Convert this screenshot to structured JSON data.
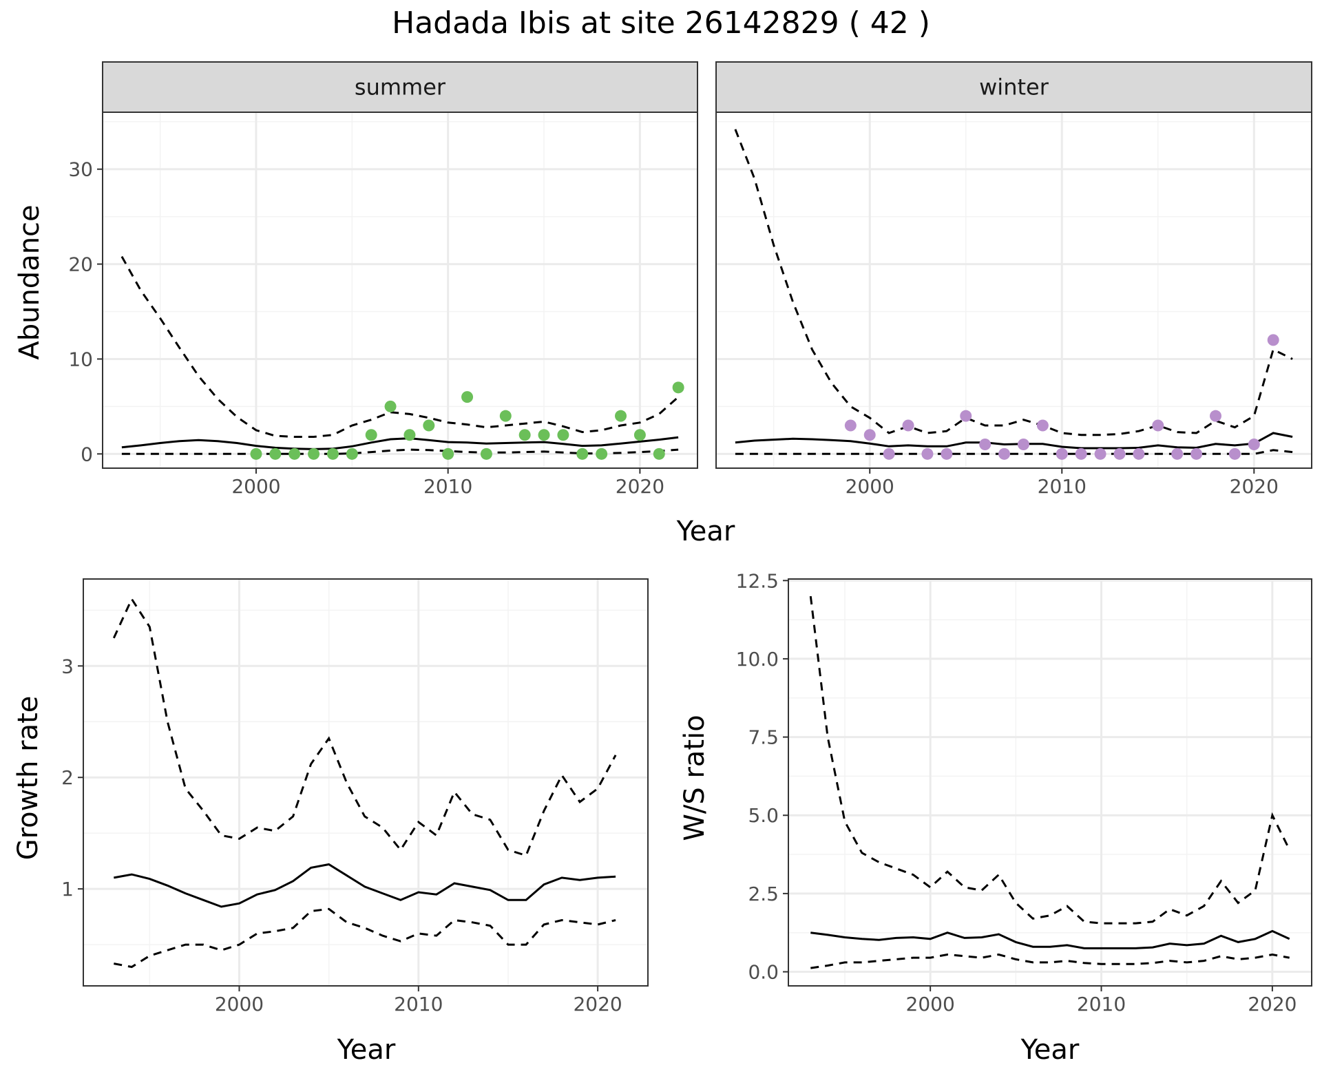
{
  "figure": {
    "title": "Hadada Ibis at site 26142829 ( 42 )"
  },
  "colors": {
    "summer_points": "#6bbf59",
    "winter_points": "#b88fcc",
    "line": "#000000",
    "grid_major": "#ebebeb",
    "strip_fill": "#d9d9d9"
  },
  "chart_data": [
    {
      "id": "abundance",
      "type": "line+scatter",
      "xlabel": "Year",
      "ylabel": "Abundance",
      "xlim": [
        1992,
        2023
      ],
      "ylim": [
        -1.5,
        36
      ],
      "x_ticks": [
        2000,
        2010,
        2020
      ],
      "y_ticks": [
        0,
        10,
        20,
        30
      ],
      "panels": [
        {
          "label": "summer",
          "x": [
            1993,
            1994,
            1995,
            1996,
            1997,
            1998,
            1999,
            2000,
            2001,
            2002,
            2003,
            2004,
            2005,
            2006,
            2007,
            2008,
            2009,
            2010,
            2011,
            2012,
            2013,
            2014,
            2015,
            2016,
            2017,
            2018,
            2019,
            2020,
            2021,
            2022
          ],
          "mean": [
            0.7,
            0.9,
            1.15,
            1.35,
            1.45,
            1.35,
            1.15,
            0.85,
            0.65,
            0.55,
            0.5,
            0.55,
            0.8,
            1.2,
            1.55,
            1.65,
            1.45,
            1.25,
            1.2,
            1.1,
            1.15,
            1.2,
            1.25,
            1.05,
            0.85,
            0.9,
            1.1,
            1.3,
            1.5,
            1.75
          ],
          "upper": [
            20.8,
            17.2,
            14.3,
            11.2,
            8.2,
            5.8,
            3.9,
            2.5,
            1.9,
            1.8,
            1.8,
            2.0,
            3.0,
            3.6,
            4.4,
            4.2,
            3.8,
            3.3,
            3.1,
            2.8,
            3.0,
            3.2,
            3.4,
            2.9,
            2.3,
            2.5,
            3.0,
            3.3,
            4.2,
            6.0
          ],
          "lower": [
            0.0,
            0.0,
            0.0,
            0.0,
            0.0,
            0.0,
            0.0,
            0.0,
            0.0,
            0.0,
            0.0,
            0.0,
            0.05,
            0.2,
            0.35,
            0.45,
            0.4,
            0.3,
            0.2,
            0.15,
            0.15,
            0.2,
            0.25,
            0.15,
            0.05,
            0.05,
            0.1,
            0.2,
            0.3,
            0.45
          ],
          "observed_x": [
            2000,
            2001,
            2002,
            2003,
            2004,
            2005,
            2006,
            2007,
            2008,
            2009,
            2010,
            2011,
            2012,
            2013,
            2014,
            2015,
            2016,
            2017,
            2018,
            2019,
            2020,
            2021,
            2022
          ],
          "observed_y": [
            0,
            0,
            0,
            0,
            0,
            0,
            2,
            5,
            2,
            3,
            0,
            6,
            0,
            4,
            2,
            2,
            2,
            0,
            0,
            4,
            2,
            0,
            7
          ]
        },
        {
          "label": "winter",
          "x": [
            1993,
            1994,
            1995,
            1996,
            1997,
            1998,
            1999,
            2000,
            2001,
            2002,
            2003,
            2004,
            2005,
            2006,
            2007,
            2008,
            2009,
            2010,
            2011,
            2012,
            2013,
            2014,
            2015,
            2016,
            2017,
            2018,
            2019,
            2020,
            2021,
            2022
          ],
          "mean": [
            1.2,
            1.4,
            1.5,
            1.6,
            1.55,
            1.45,
            1.35,
            1.1,
            0.8,
            0.9,
            0.8,
            0.8,
            1.2,
            1.2,
            1.0,
            1.05,
            1.05,
            0.75,
            0.6,
            0.6,
            0.6,
            0.65,
            0.9,
            0.7,
            0.65,
            1.05,
            0.9,
            1.1,
            2.2,
            1.8
          ],
          "upper": [
            34.2,
            29.0,
            22.0,
            16.0,
            11.0,
            7.5,
            5.0,
            3.8,
            2.2,
            2.9,
            2.2,
            2.4,
            3.8,
            3.0,
            3.0,
            3.6,
            3.0,
            2.2,
            2.0,
            2.0,
            2.1,
            2.4,
            3.0,
            2.3,
            2.2,
            3.5,
            2.8,
            4.0,
            11.0,
            10.0
          ],
          "lower": [
            0.0,
            0.0,
            0.0,
            0.0,
            0.0,
            0.0,
            0.0,
            0.0,
            0.0,
            0.0,
            0.0,
            0.0,
            0.0,
            0.0,
            0.0,
            0.0,
            0.0,
            0.0,
            0.0,
            0.0,
            0.0,
            0.0,
            0.0,
            0.0,
            0.0,
            0.0,
            0.0,
            0.0,
            0.4,
            0.2
          ],
          "observed_x": [
            1999,
            2000,
            2001,
            2002,
            2003,
            2004,
            2005,
            2006,
            2007,
            2008,
            2009,
            2010,
            2011,
            2012,
            2013,
            2014,
            2015,
            2016,
            2017,
            2018,
            2019,
            2020,
            2021
          ],
          "observed_y": [
            3,
            2,
            0,
            3,
            0,
            0,
            4,
            1,
            0,
            1,
            3,
            0,
            0,
            0,
            0,
            0,
            3,
            0,
            0,
            4,
            0,
            1,
            12
          ]
        }
      ]
    },
    {
      "id": "growth",
      "type": "line",
      "xlabel": "Year",
      "ylabel": "Growth rate",
      "xlim": [
        1991.3,
        2022.8
      ],
      "ylim": [
        0.13,
        3.78
      ],
      "x_ticks": [
        2000,
        2010,
        2020
      ],
      "y_ticks": [
        1,
        2,
        3
      ],
      "x": [
        1993,
        1994,
        1995,
        1996,
        1997,
        1998,
        1999,
        2000,
        2001,
        2002,
        2003,
        2004,
        2005,
        2006,
        2007,
        2008,
        2009,
        2010,
        2011,
        2012,
        2013,
        2014,
        2015,
        2016,
        2017,
        2018,
        2019,
        2020,
        2021
      ],
      "mean": [
        1.1,
        1.13,
        1.09,
        1.03,
        0.96,
        0.9,
        0.84,
        0.87,
        0.95,
        0.99,
        1.07,
        1.19,
        1.22,
        1.12,
        1.02,
        0.96,
        0.9,
        0.97,
        0.95,
        1.05,
        1.02,
        0.99,
        0.9,
        0.9,
        1.04,
        1.1,
        1.08,
        1.1,
        1.11
      ],
      "upper": [
        3.25,
        3.6,
        3.35,
        2.5,
        1.9,
        1.7,
        1.48,
        1.45,
        1.55,
        1.52,
        1.65,
        2.12,
        2.35,
        1.95,
        1.65,
        1.55,
        1.35,
        1.6,
        1.48,
        1.87,
        1.67,
        1.62,
        1.35,
        1.3,
        1.7,
        2.02,
        1.78,
        1.9,
        2.2
      ],
      "lower": [
        0.33,
        0.3,
        0.4,
        0.45,
        0.5,
        0.5,
        0.45,
        0.5,
        0.6,
        0.62,
        0.65,
        0.8,
        0.82,
        0.7,
        0.65,
        0.58,
        0.53,
        0.6,
        0.58,
        0.72,
        0.7,
        0.67,
        0.5,
        0.5,
        0.68,
        0.72,
        0.7,
        0.68,
        0.72
      ]
    },
    {
      "id": "ratio",
      "type": "line",
      "xlabel": "Year",
      "ylabel": "W/S ratio",
      "xlim": [
        1991.7,
        2022.3
      ],
      "ylim": [
        -0.45,
        12.55
      ],
      "x_ticks": [
        2000,
        2010,
        2020
      ],
      "y_ticks": [
        0.0,
        2.5,
        5.0,
        7.5,
        10.0,
        12.5
      ],
      "y_tick_labels": [
        "0.0",
        "2.5",
        "5.0",
        "7.5",
        "10.0",
        "12.5"
      ],
      "x": [
        1993,
        1994,
        1995,
        1996,
        1997,
        1998,
        1999,
        2000,
        2001,
        2002,
        2003,
        2004,
        2005,
        2006,
        2007,
        2008,
        2009,
        2010,
        2011,
        2012,
        2013,
        2014,
        2015,
        2016,
        2017,
        2018,
        2019,
        2020,
        2021
      ],
      "mean": [
        1.25,
        1.18,
        1.1,
        1.05,
        1.02,
        1.08,
        1.1,
        1.05,
        1.25,
        1.08,
        1.1,
        1.2,
        0.95,
        0.8,
        0.8,
        0.85,
        0.75,
        0.75,
        0.75,
        0.75,
        0.78,
        0.9,
        0.85,
        0.9,
        1.15,
        0.95,
        1.05,
        1.3,
        1.05
      ],
      "upper": [
        12.0,
        7.5,
        4.8,
        3.8,
        3.5,
        3.3,
        3.1,
        2.7,
        3.2,
        2.7,
        2.6,
        3.1,
        2.2,
        1.7,
        1.8,
        2.1,
        1.6,
        1.55,
        1.55,
        1.55,
        1.6,
        2.0,
        1.8,
        2.1,
        2.9,
        2.2,
        2.6,
        5.0,
        3.9
      ],
      "lower": [
        0.12,
        0.2,
        0.3,
        0.3,
        0.35,
        0.4,
        0.45,
        0.45,
        0.55,
        0.5,
        0.45,
        0.55,
        0.4,
        0.3,
        0.3,
        0.35,
        0.28,
        0.25,
        0.25,
        0.25,
        0.28,
        0.35,
        0.3,
        0.35,
        0.5,
        0.4,
        0.45,
        0.55,
        0.45
      ]
    }
  ]
}
